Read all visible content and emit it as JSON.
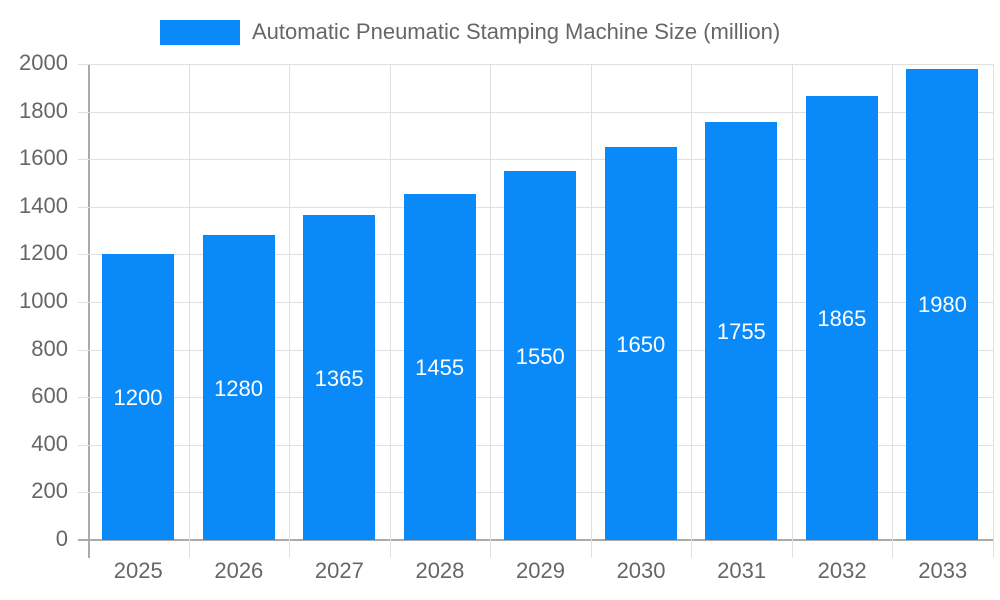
{
  "chart_data": {
    "type": "bar",
    "title": "",
    "legend": [
      "Automatic Pneumatic Stamping Machine Size (million)"
    ],
    "categories": [
      "2025",
      "2026",
      "2027",
      "2028",
      "2029",
      "2030",
      "2031",
      "2032",
      "2033"
    ],
    "series": [
      {
        "name": "Automatic Pneumatic Stamping Machine Size (million)",
        "values": [
          1200,
          1280,
          1365,
          1455,
          1550,
          1650,
          1755,
          1865,
          1980
        ],
        "color": "#0a8af8"
      }
    ],
    "xlabel": "",
    "ylabel": "",
    "ylim": [
      0,
      2000
    ],
    "yticks": [
      "0",
      "200",
      "400",
      "600",
      "800",
      "1000",
      "1200",
      "1400",
      "1600",
      "1800",
      "2000"
    ],
    "grid": true,
    "legend_position": "top"
  },
  "legend": {
    "label": "Automatic Pneumatic Stamping Machine Size (million)"
  },
  "bars": [
    {
      "year": "2025",
      "value": "1200"
    },
    {
      "year": "2026",
      "value": "1280"
    },
    {
      "year": "2027",
      "value": "1365"
    },
    {
      "year": "2028",
      "value": "1455"
    },
    {
      "year": "2029",
      "value": "1550"
    },
    {
      "year": "2030",
      "value": "1650"
    },
    {
      "year": "2031",
      "value": "1755"
    },
    {
      "year": "2032",
      "value": "1865"
    },
    {
      "year": "2033",
      "value": "1980"
    }
  ],
  "yaxis": {
    "ticks": [
      "0",
      "200",
      "400",
      "600",
      "800",
      "1000",
      "1200",
      "1400",
      "1600",
      "1800",
      "2000"
    ]
  }
}
